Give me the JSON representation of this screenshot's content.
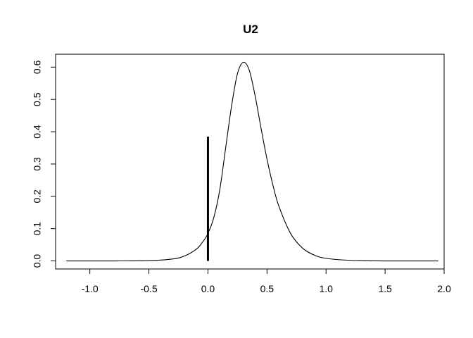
{
  "chart_data": {
    "type": "line",
    "title": "U2",
    "xlabel": "",
    "ylabel": "",
    "xlim": [
      -1.29,
      2.0
    ],
    "ylim": [
      -0.025,
      0.64
    ],
    "xticks": [
      -1.0,
      -0.5,
      0.0,
      0.5,
      1.0,
      1.5,
      2.0
    ],
    "yticks": [
      0.0,
      0.1,
      0.2,
      0.3,
      0.4,
      0.5,
      0.6
    ],
    "xtick_labels": [
      "-1.0",
      "-0.5",
      "0.0",
      "0.5",
      "1.0",
      "1.5",
      "2.0"
    ],
    "ytick_labels": [
      "0.0",
      "0.1",
      "0.2",
      "0.3",
      "0.4",
      "0.5",
      "0.6"
    ],
    "grid": false,
    "legend": "none",
    "series": [
      {
        "x": [
          -1.2,
          -0.8,
          -0.5,
          -0.3,
          -0.2,
          -0.1,
          -0.05,
          0.0,
          0.05,
          0.1,
          0.15,
          0.2,
          0.25,
          0.3,
          0.35,
          0.4,
          0.45,
          0.5,
          0.55,
          0.6,
          0.7,
          0.8,
          0.9,
          1.0,
          1.2,
          1.5,
          1.95
        ],
        "y": [
          0.0,
          0.0,
          0.001,
          0.006,
          0.015,
          0.036,
          0.056,
          0.085,
          0.135,
          0.22,
          0.35,
          0.48,
          0.58,
          0.615,
          0.59,
          0.51,
          0.41,
          0.315,
          0.235,
          0.17,
          0.085,
          0.04,
          0.018,
          0.008,
          0.002,
          0.0,
          0.0
        ]
      }
    ],
    "vertical_segment": {
      "x": 0.0,
      "y0": 0.0,
      "y1": 0.385
    }
  }
}
